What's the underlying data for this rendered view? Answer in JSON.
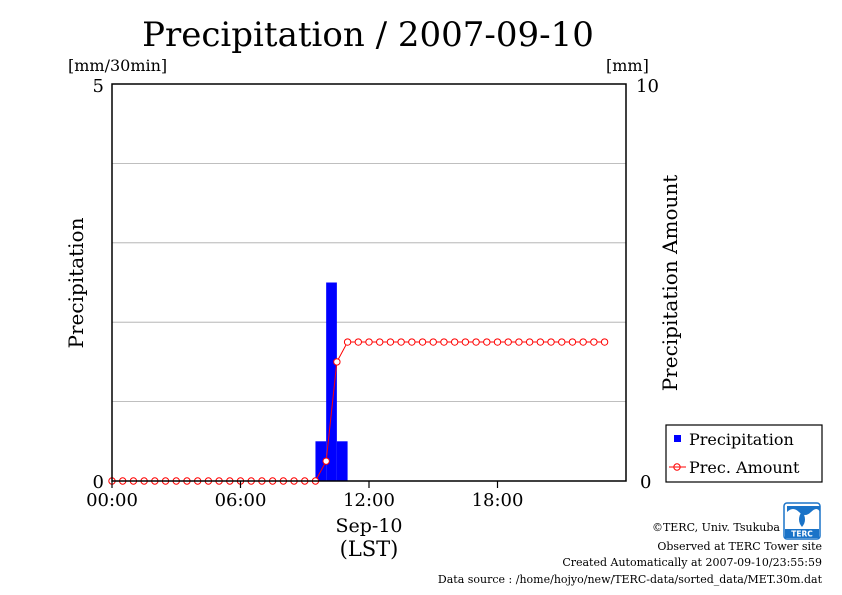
{
  "chart_data": {
    "type": "bar",
    "title": "Precipitation / 2007-09-10",
    "y_left": {
      "label": "Precipitation",
      "unit": "[mm/30min]",
      "range": [
        0,
        5
      ],
      "ticks": [
        "5",
        "0"
      ]
    },
    "y_right": {
      "label": "Precipitation Amount",
      "unit": "[mm]",
      "range": [
        0,
        10
      ],
      "ticks": [
        "10",
        "0"
      ]
    },
    "x_axis": {
      "range_hours": [
        0,
        24
      ],
      "ticks": [
        {
          "hour": 0,
          "label": "00:00"
        },
        {
          "hour": 6,
          "label": "06:00"
        },
        {
          "hour": 12,
          "label": "12:00"
        },
        {
          "hour": 18,
          "label": "18:00"
        }
      ],
      "date_label": "Sep-10",
      "tz_label": "(LST)"
    },
    "grid": true,
    "grid_y_left": [
      1,
      2,
      3,
      4
    ],
    "legend_position": "bottom-right",
    "series": [
      {
        "name": "Precipitation",
        "type": "bar",
        "color": "#0000ff",
        "bar_width_hours": 0.5,
        "points": [
          {
            "hour": 9.5,
            "value": 0.5
          },
          {
            "hour": 10.0,
            "value": 2.5
          },
          {
            "hour": 10.5,
            "value": 0.5
          }
        ]
      },
      {
        "name": "Prec. Amount",
        "type": "line",
        "color": "#ff0000",
        "marker": "open-circle",
        "hours": [
          0,
          0.5,
          1,
          1.5,
          2,
          2.5,
          3,
          3.5,
          4,
          4.5,
          5,
          5.5,
          6,
          6.5,
          7,
          7.5,
          8,
          8.5,
          9,
          9.5,
          10,
          10.5,
          11,
          11.5,
          12,
          12.5,
          13,
          13.5,
          14,
          14.5,
          15,
          15.5,
          16,
          16.5,
          17,
          17.5,
          18,
          18.5,
          19,
          19.5,
          20,
          20.5,
          21,
          21.5,
          22,
          22.5,
          23
        ],
        "values": [
          0,
          0,
          0,
          0,
          0,
          0,
          0,
          0,
          0,
          0,
          0,
          0,
          0,
          0,
          0,
          0,
          0,
          0,
          0,
          0,
          0.5,
          3,
          3.5,
          3.5,
          3.5,
          3.5,
          3.5,
          3.5,
          3.5,
          3.5,
          3.5,
          3.5,
          3.5,
          3.5,
          3.5,
          3.5,
          3.5,
          3.5,
          3.5,
          3.5,
          3.5,
          3.5,
          3.5,
          3.5,
          3.5,
          3.5,
          3.5
        ]
      }
    ]
  },
  "footer": {
    "copyright": "©TERC, Univ. Tsukuba",
    "observed": "Observed at TERC Tower site",
    "created": "Created Automatically at 2007-09-10/23:55:59",
    "source": "Data source : /home/hojyo/new/TERC-data/sorted_data/MET.30m.dat"
  },
  "logo": {
    "text": "TERC",
    "color": "#1a73c8"
  }
}
